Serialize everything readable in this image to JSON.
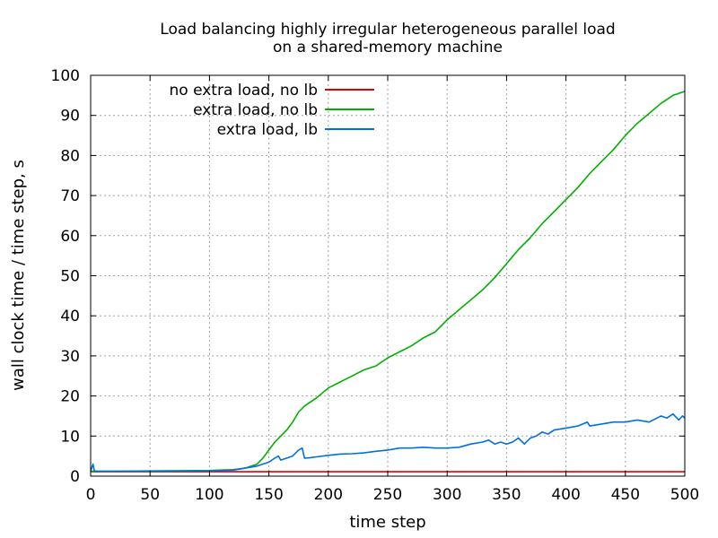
{
  "chart_data": {
    "type": "line",
    "title": "Load balancing highly irregular heterogeneous parallel load",
    "subtitle": "on a shared-memory machine",
    "xlabel": "time step",
    "ylabel": "wall clock time / time step, s",
    "xlim": [
      0,
      500
    ],
    "ylim": [
      0,
      100
    ],
    "xticks": [
      0,
      50,
      100,
      150,
      200,
      250,
      300,
      350,
      400,
      450,
      500
    ],
    "yticks": [
      0,
      10,
      20,
      30,
      40,
      50,
      60,
      70,
      80,
      90,
      100
    ],
    "grid": true,
    "legend_position": "top-left",
    "series": [
      {
        "name": "no extra load, no lb",
        "color": "#e00000",
        "x": [
          0,
          500
        ],
        "y": [
          1.1,
          1.1
        ]
      },
      {
        "name": "extra load, no lb",
        "color": "#00b000",
        "x": [
          0,
          20,
          50,
          100,
          120,
          130,
          140,
          145,
          150,
          155,
          160,
          165,
          170,
          175,
          180,
          185,
          190,
          200,
          210,
          220,
          230,
          240,
          250,
          260,
          270,
          280,
          290,
          300,
          310,
          320,
          330,
          340,
          350,
          360,
          370,
          380,
          390,
          400,
          410,
          420,
          430,
          440,
          450,
          460,
          470,
          480,
          490,
          500
        ],
        "y": [
          1.2,
          1.2,
          1.3,
          1.4,
          1.6,
          2.0,
          3.0,
          4.5,
          6.5,
          8.5,
          10.0,
          11.5,
          13.5,
          16.0,
          17.5,
          18.5,
          19.5,
          22.0,
          23.5,
          25.0,
          26.5,
          27.5,
          29.5,
          31.0,
          32.5,
          34.5,
          36.0,
          39.0,
          41.5,
          44.0,
          46.5,
          49.5,
          53.0,
          56.5,
          59.5,
          63.0,
          66.0,
          69.0,
          72.0,
          75.5,
          78.5,
          81.5,
          85.0,
          88.0,
          90.5,
          93.0,
          95.0,
          96.0
        ]
      },
      {
        "name": "extra load, lb",
        "color": "#0070e0",
        "x": [
          0,
          2,
          3,
          4,
          10,
          50,
          100,
          120,
          130,
          140,
          150,
          155,
          158,
          160,
          165,
          170,
          175,
          178,
          180,
          185,
          190,
          200,
          210,
          220,
          230,
          240,
          250,
          260,
          270,
          280,
          290,
          300,
          310,
          320,
          330,
          335,
          340,
          345,
          350,
          355,
          360,
          365,
          370,
          375,
          380,
          385,
          390,
          400,
          410,
          418,
          420,
          430,
          440,
          450,
          460,
          470,
          480,
          485,
          490,
          495,
          498,
          500
        ],
        "y": [
          1.2,
          3.0,
          1.5,
          1.2,
          1.2,
          1.2,
          1.3,
          1.5,
          2.0,
          2.5,
          3.5,
          4.5,
          5.0,
          4.0,
          4.5,
          5.0,
          6.5,
          7.0,
          4.5,
          4.6,
          4.8,
          5.2,
          5.5,
          5.6,
          5.8,
          6.2,
          6.5,
          7.0,
          7.0,
          7.2,
          7.0,
          7.0,
          7.2,
          8.0,
          8.5,
          9.0,
          8.0,
          8.5,
          8.0,
          8.5,
          9.5,
          8.0,
          9.5,
          10.0,
          11.0,
          10.5,
          11.5,
          12.0,
          12.5,
          13.5,
          12.5,
          13.0,
          13.5,
          13.5,
          14.0,
          13.5,
          15.0,
          14.5,
          15.5,
          14.0,
          15.0,
          14.5
        ]
      }
    ]
  }
}
